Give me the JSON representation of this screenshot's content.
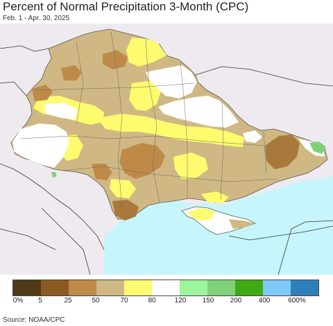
{
  "header": {
    "title": "Percent of Normal Precipitation 3-Month (CPC)",
    "subtitle": "Feb. 1 - Apr. 30, 2025"
  },
  "legend": {
    "categories": [
      {
        "color": "#4f3a17"
      },
      {
        "color": "#8b5a20"
      },
      {
        "color": "#bf8a48"
      },
      {
        "color": "#cfb883"
      },
      {
        "color": "#fffb6e"
      },
      {
        "color": "#ffffff"
      },
      {
        "color": "#9cf59c"
      },
      {
        "color": "#7fd27a"
      },
      {
        "color": "#3faa13"
      },
      {
        "color": "#80c8f8"
      },
      {
        "color": "#2e7fb8"
      }
    ],
    "tick_labels": [
      "0%",
      "5",
      "25",
      "50",
      "70",
      "80",
      "120",
      "150",
      "200",
      "400",
      "600%"
    ]
  },
  "footer": {
    "source": "Source: NOAA/CPC"
  },
  "colors": {
    "sea": "#c6f6fb",
    "outside": "#efeaf0",
    "tan": "#cfb883",
    "brown": "#bf8a48",
    "dark_brown": "#a8783c",
    "yellow": "#fffb6e",
    "white": "#ffffff",
    "green": "#7fd27a"
  }
}
